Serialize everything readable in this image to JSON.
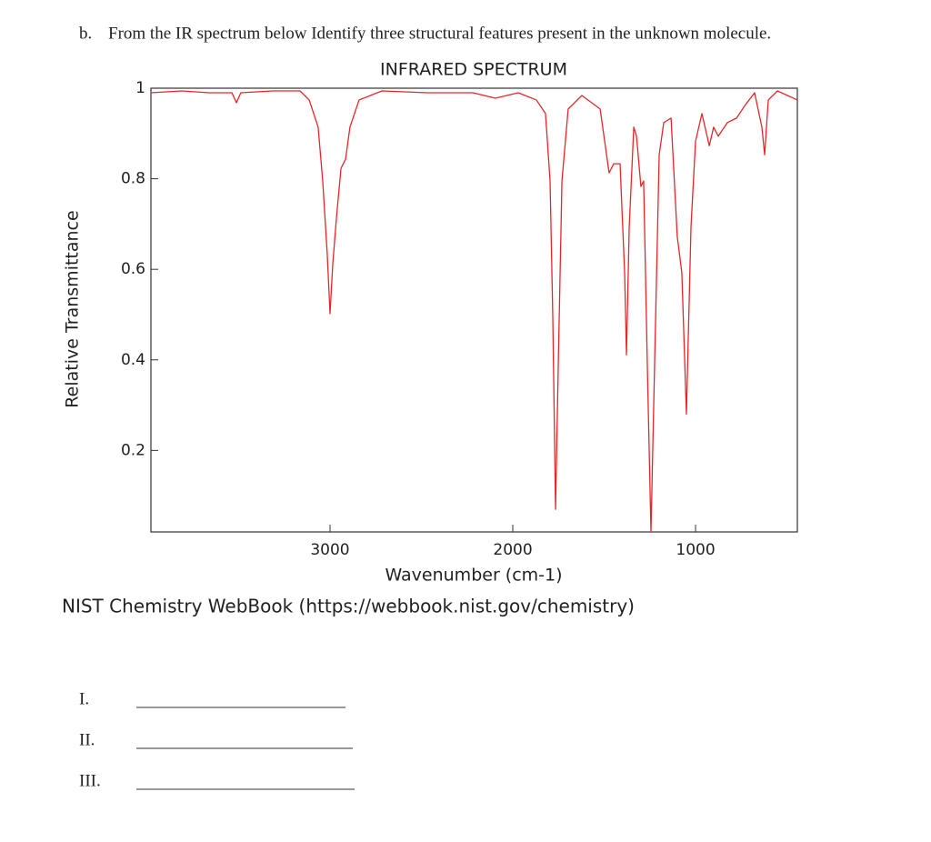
{
  "question": {
    "label": "b.",
    "text": "From the IR spectrum below Identify three structural features present in the unknown molecule."
  },
  "chart_data": {
    "type": "line",
    "title": "INFRARED SPECTRUM",
    "x_label": "Wavenumber (cm-1)",
    "y_label": "Relative Transmittance",
    "x": [
      3980,
      3811,
      3662,
      3537,
      3512,
      3488,
      3313,
      3164,
      3114,
      3065,
      3040,
      3015,
      3000,
      2985,
      2965,
      2940,
      2915,
      2891,
      2841,
      2716,
      2468,
      2219,
      2095,
      1970,
      1871,
      1821,
      1796,
      1781,
      1766,
      1751,
      1731,
      1697,
      1622,
      1522,
      1473,
      1448,
      1413,
      1388,
      1378,
      1363,
      1338,
      1323,
      1299,
      1284,
      1264,
      1244,
      1224,
      1199,
      1174,
      1134,
      1100,
      1075,
      1050,
      1025,
      1000,
      965,
      925,
      901,
      876,
      826,
      776,
      726,
      677,
      637,
      622,
      602,
      552,
      443
    ],
    "values": [
      0.99,
      0.994,
      0.99,
      0.99,
      0.968,
      0.99,
      0.994,
      0.994,
      0.974,
      0.914,
      0.795,
      0.632,
      0.502,
      0.612,
      0.713,
      0.823,
      0.843,
      0.914,
      0.974,
      0.994,
      0.99,
      0.99,
      0.978,
      0.99,
      0.974,
      0.944,
      0.795,
      0.491,
      0.07,
      0.391,
      0.795,
      0.954,
      0.984,
      0.954,
      0.813,
      0.833,
      0.833,
      0.592,
      0.411,
      0.693,
      0.914,
      0.894,
      0.783,
      0.795,
      0.391,
      0.02,
      0.391,
      0.853,
      0.924,
      0.934,
      0.672,
      0.592,
      0.28,
      0.693,
      0.883,
      0.944,
      0.873,
      0.914,
      0.894,
      0.924,
      0.934,
      0.964,
      0.99,
      0.914,
      0.853,
      0.974,
      0.994,
      0.974
    ],
    "color": "#e8262a",
    "xlim": [
      3980,
      443
    ],
    "xticks": [
      3000,
      2000,
      1000
    ],
    "ylim": [
      0.02,
      1
    ],
    "yticks": [
      0.2,
      0.4,
      0.6,
      0.8,
      1
    ]
  },
  "source": "NIST Chemistry WebBook (https://webbook.nist.gov/chemistry)",
  "answers": [
    "I.",
    "II.",
    "III."
  ]
}
